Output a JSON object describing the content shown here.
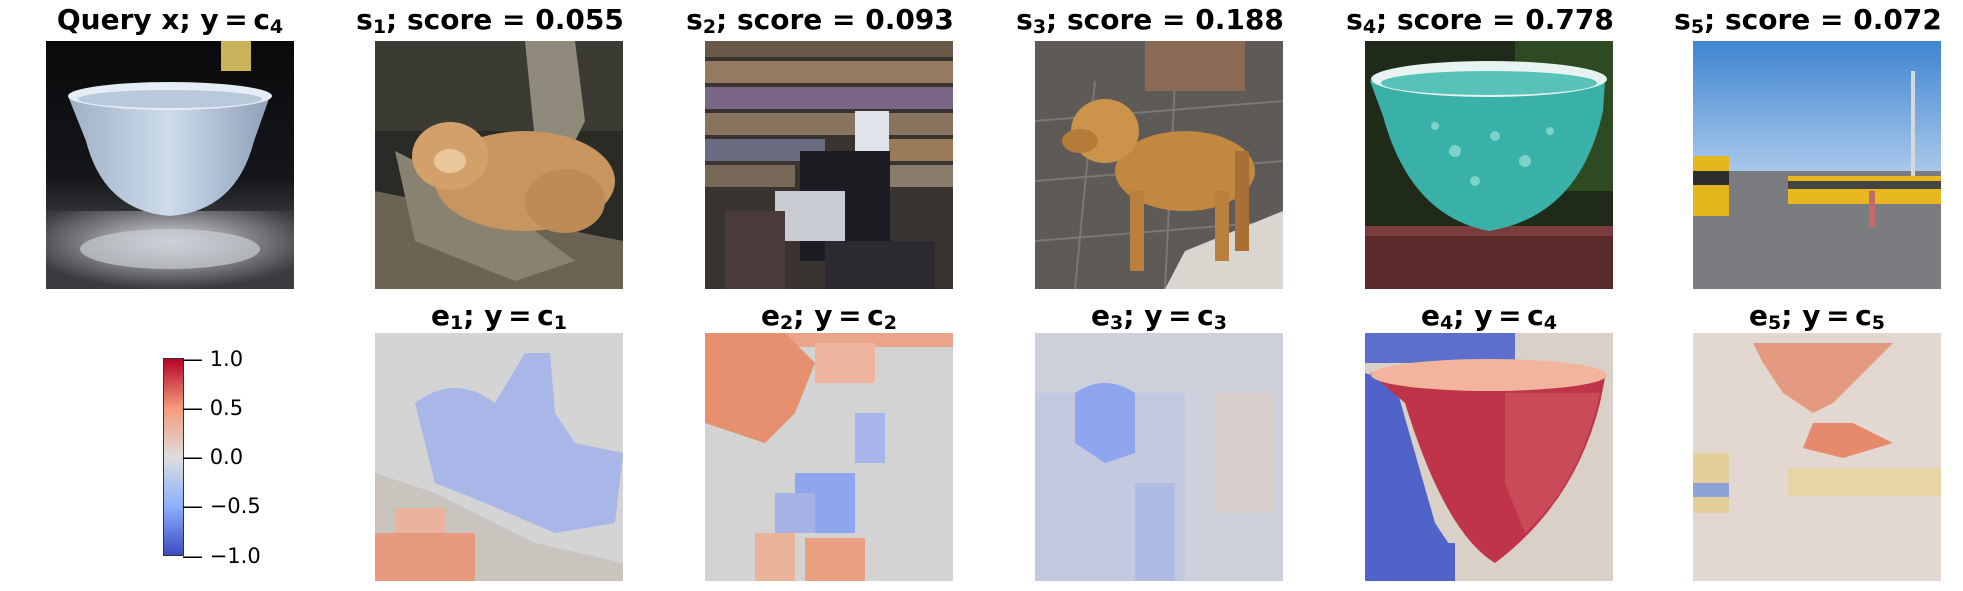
{
  "query": {
    "name": "Query x",
    "class_sym": "y",
    "class_idx": "4"
  },
  "support": [
    {
      "label": "s",
      "idx": "1",
      "score_word": "score",
      "score": "0.055",
      "image": "lion-lying-on-log-photo"
    },
    {
      "label": "s",
      "idx": "2",
      "score_word": "score",
      "score": "0.093",
      "image": "bookstore-counter-photo"
    },
    {
      "label": "s",
      "idx": "3",
      "score_word": "score",
      "score": "0.188",
      "image": "golden-retriever-photo"
    },
    {
      "label": "s",
      "idx": "4",
      "score_word": "score",
      "score": "0.778",
      "image": "turquoise-mixing-bowl-photo"
    },
    {
      "label": "s",
      "idx": "5",
      "score_word": "score",
      "score": "0.072",
      "image": "school-buses-parking-lot-photo"
    }
  ],
  "explanations": [
    {
      "label": "e",
      "idx": "1",
      "class_sym": "y",
      "class_idx": "1"
    },
    {
      "label": "e",
      "idx": "2",
      "class_sym": "y",
      "class_idx": "2"
    },
    {
      "label": "e",
      "idx": "3",
      "class_sym": "y",
      "class_idx": "3"
    },
    {
      "label": "e",
      "idx": "4",
      "class_sym": "y",
      "class_idx": "4"
    },
    {
      "label": "e",
      "idx": "5",
      "class_sym": "y",
      "class_idx": "5"
    }
  ],
  "colorbar": {
    "colormap": "coolwarm",
    "low_color": "#3b4cc0",
    "mid_color": "#dddddd",
    "high_color": "#b40426",
    "ticks": [
      "1.0",
      "0.5",
      "0.0",
      "−0.5",
      "−1.0"
    ]
  }
}
